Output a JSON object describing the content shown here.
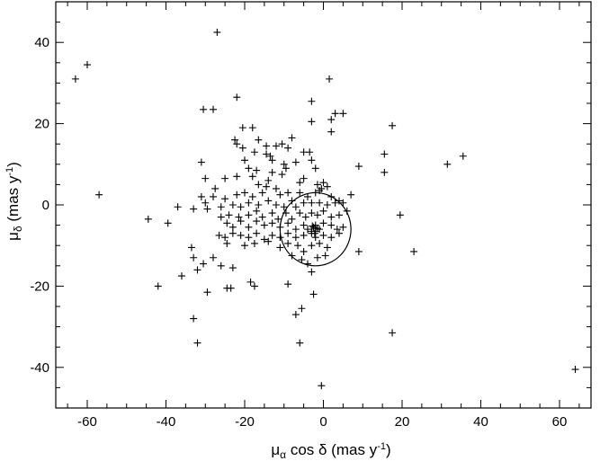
{
  "chart_data": {
    "type": "scatter",
    "title": "",
    "xlabel": {
      "mu": "μ",
      "sub": "α",
      "rest": " cos δ (mas y",
      "sup": "-1",
      "close": ")"
    },
    "ylabel": {
      "mu": "μ",
      "sub": "δ",
      "rest": " (mas y",
      "sup": "-1",
      "close": ")"
    },
    "xlim": [
      -68,
      68
    ],
    "ylim": [
      -50,
      50
    ],
    "xticks": [
      -60,
      -40,
      -20,
      0,
      20,
      40,
      60
    ],
    "yticks": [
      -40,
      -20,
      0,
      20,
      40
    ],
    "xtick_labels": [
      "-60",
      "-40",
      "-20",
      "0",
      "20",
      "40",
      "60"
    ],
    "ytick_labels": [
      "-40",
      "-20",
      "0",
      "20",
      "40"
    ],
    "grid": false,
    "legend": "none",
    "marker": "plus",
    "circle": {
      "cx": -2,
      "cy": -6,
      "r": 9
    },
    "points": [
      [
        -27,
        42.5
      ],
      [
        -60,
        34.5
      ],
      [
        -63,
        31
      ],
      [
        1.5,
        31
      ],
      [
        -22,
        26.5
      ],
      [
        -3,
        25.5
      ],
      [
        -30.5,
        23.5
      ],
      [
        -28,
        23.5
      ],
      [
        3,
        22.5
      ],
      [
        5,
        22.5
      ],
      [
        2,
        21
      ],
      [
        -3,
        20.5
      ],
      [
        17.5,
        19.5
      ],
      [
        -20.5,
        19
      ],
      [
        -18,
        19
      ],
      [
        2,
        18
      ],
      [
        15.5,
        12.5
      ],
      [
        -22.5,
        16
      ],
      [
        -16.5,
        16
      ],
      [
        -14.5,
        14.5
      ],
      [
        -10.5,
        15
      ],
      [
        -20.5,
        14
      ],
      [
        -22,
        15
      ],
      [
        -17.5,
        13
      ],
      [
        -12,
        14.5
      ],
      [
        -8,
        16.5
      ],
      [
        -9,
        14
      ],
      [
        -5,
        13
      ],
      [
        -3.5,
        13
      ],
      [
        -14.5,
        12.5
      ],
      [
        -13.5,
        12
      ],
      [
        -31,
        10.5
      ],
      [
        -13,
        11
      ],
      [
        -10,
        10
      ],
      [
        -7,
        10.5
      ],
      [
        -3,
        11
      ],
      [
        -2,
        9
      ],
      [
        -20,
        11
      ],
      [
        -19,
        9
      ],
      [
        -17,
        8.5
      ],
      [
        -9.5,
        9
      ],
      [
        35.5,
        12
      ],
      [
        31.5,
        10
      ],
      [
        15.5,
        8
      ],
      [
        9,
        9.5
      ],
      [
        -30,
        6.5
      ],
      [
        -25,
        6.5
      ],
      [
        -22,
        7
      ],
      [
        -18,
        7
      ],
      [
        -14,
        6
      ],
      [
        -13,
        8
      ],
      [
        -10.5,
        7.5
      ],
      [
        -16.5,
        5
      ],
      [
        -12,
        4
      ],
      [
        -6,
        5.5
      ],
      [
        -5,
        6.5
      ],
      [
        -1.5,
        5
      ],
      [
        -0.5,
        4
      ],
      [
        0,
        5.5
      ],
      [
        1,
        4.5
      ],
      [
        -27.5,
        4
      ],
      [
        -28,
        2
      ],
      [
        -25,
        1.5
      ],
      [
        -22,
        2.5
      ],
      [
        -20,
        3
      ],
      [
        -18,
        2
      ],
      [
        -15.5,
        3
      ],
      [
        -14.5,
        4.5
      ],
      [
        -11,
        2.5
      ],
      [
        -9,
        3
      ],
      [
        -6,
        3
      ],
      [
        -4,
        2
      ],
      [
        -2,
        3
      ],
      [
        -1,
        3.5
      ],
      [
        2,
        2
      ],
      [
        4,
        1
      ],
      [
        7,
        2.5
      ],
      [
        -57,
        2.5
      ],
      [
        -31,
        2
      ],
      [
        -30,
        0.5
      ],
      [
        -29.5,
        -1
      ],
      [
        -26,
        -0.5
      ],
      [
        -23,
        0
      ],
      [
        -21,
        -0.5
      ],
      [
        -19,
        0.5
      ],
      [
        -16.5,
        0
      ],
      [
        -14,
        1
      ],
      [
        -12,
        0
      ],
      [
        -10,
        -0.5
      ],
      [
        -8,
        1
      ],
      [
        -7,
        -0.5
      ],
      [
        -5,
        0.5
      ],
      [
        -3,
        0.5
      ],
      [
        -1,
        0.5
      ],
      [
        1,
        0
      ],
      [
        3,
        0.5
      ],
      [
        5,
        0.5
      ],
      [
        -44.5,
        -3.5
      ],
      [
        -39.5,
        -4.5
      ],
      [
        -37,
        -0.5
      ],
      [
        -33,
        -1
      ],
      [
        -26,
        -3
      ],
      [
        -24,
        -2.5
      ],
      [
        -21.5,
        -3
      ],
      [
        -19,
        -2.5
      ],
      [
        -17,
        -1.5
      ],
      [
        -15.5,
        -3
      ],
      [
        -13,
        -2
      ],
      [
        -11.5,
        -3.5
      ],
      [
        -9.5,
        -2
      ],
      [
        -8,
        -3.5
      ],
      [
        -6,
        -2
      ],
      [
        -4.5,
        -3
      ],
      [
        -3,
        -2
      ],
      [
        -1.5,
        -2.5
      ],
      [
        0,
        -1.5
      ],
      [
        2,
        -3
      ],
      [
        4,
        -2.5
      ],
      [
        6,
        -1.5
      ],
      [
        -24.5,
        -4.5
      ],
      [
        -23,
        -5.5
      ],
      [
        -21,
        -4
      ],
      [
        -19,
        -5.5
      ],
      [
        -17,
        -4
      ],
      [
        -15,
        -5
      ],
      [
        -13,
        -4.5
      ],
      [
        -11,
        -5.5
      ],
      [
        -9,
        -4.5
      ],
      [
        -7,
        -6
      ],
      [
        -5,
        -5
      ],
      [
        -4,
        -6
      ],
      [
        -2,
        -5
      ],
      [
        -1,
        -6
      ],
      [
        0,
        -4.5
      ],
      [
        2,
        -5
      ],
      [
        3.5,
        -6
      ],
      [
        5,
        -5.5
      ],
      [
        -26.5,
        -7.5
      ],
      [
        -25,
        -8
      ],
      [
        -23,
        -7
      ],
      [
        -21,
        -7.5
      ],
      [
        -19,
        -8
      ],
      [
        -17,
        -7
      ],
      [
        -15,
        -8.5
      ],
      [
        -13,
        -7.5
      ],
      [
        -11,
        -8
      ],
      [
        -9,
        -7
      ],
      [
        -7,
        -8
      ],
      [
        -5,
        -7.5
      ],
      [
        -3,
        -7
      ],
      [
        -2,
        -8
      ],
      [
        0,
        -7.5
      ],
      [
        2,
        -8
      ],
      [
        4,
        -7
      ],
      [
        19.5,
        -2.5
      ],
      [
        9,
        -11.5
      ],
      [
        23,
        -11.5
      ],
      [
        -24.5,
        -9.5
      ],
      [
        -20,
        -10
      ],
      [
        -17.5,
        -9.5
      ],
      [
        -14,
        -9
      ],
      [
        -11,
        -10.5
      ],
      [
        -9,
        -9.5
      ],
      [
        -6.5,
        -10
      ],
      [
        -5,
        -11.5
      ],
      [
        -3,
        -10
      ],
      [
        -1,
        -9.5
      ],
      [
        1,
        -10.5
      ],
      [
        -33.5,
        -10.5
      ],
      [
        -33,
        -13
      ],
      [
        -28,
        -13
      ],
      [
        -8,
        -12.5
      ],
      [
        -5.5,
        -13.5
      ],
      [
        -4,
        -14.5
      ],
      [
        -1.5,
        -13
      ],
      [
        0.5,
        -12.5
      ],
      [
        -32,
        -16
      ],
      [
        -30.5,
        -14.5
      ],
      [
        -26,
        -15
      ],
      [
        -36,
        -17.5
      ],
      [
        -23,
        -15.5
      ],
      [
        -3,
        -16.5
      ],
      [
        -24.5,
        -20.5
      ],
      [
        -23.5,
        -20.5
      ],
      [
        -18.5,
        -19
      ],
      [
        -17.5,
        -20
      ],
      [
        -9,
        -19.5
      ],
      [
        -42,
        -20
      ],
      [
        -29.5,
        -21.5
      ],
      [
        -2.5,
        -22
      ],
      [
        17.5,
        -31.5
      ],
      [
        -5.5,
        -25.5
      ],
      [
        -7,
        -27
      ],
      [
        -33,
        -28
      ],
      [
        -32,
        -34
      ],
      [
        -6,
        -34
      ],
      [
        64,
        -40.5
      ],
      [
        -0.5,
        -44.5
      ],
      [
        -2.5,
        -5.5
      ],
      [
        -2,
        -6.5
      ],
      [
        -3,
        -6.5
      ],
      [
        -1.5,
        -5.8
      ],
      [
        -2.8,
        -5.2
      ],
      [
        -2.2,
        -7
      ]
    ]
  }
}
